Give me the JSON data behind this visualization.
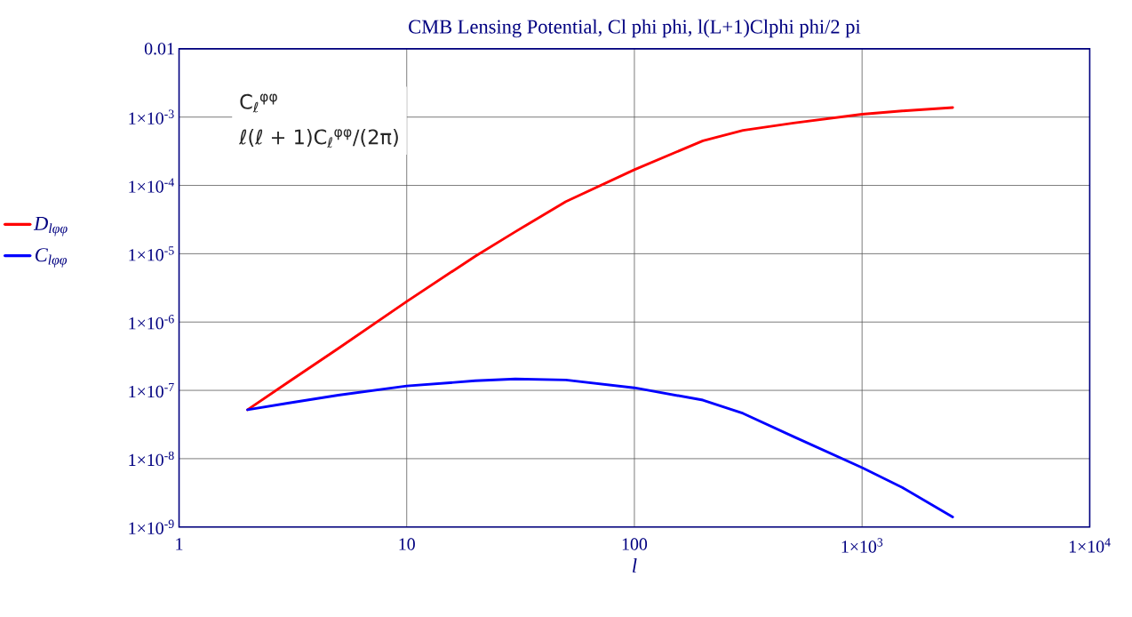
{
  "chart_data": {
    "type": "line",
    "title": "CMB Lensing Potential, Cl phi phi,  l(L+1)Clphi phi/2 pi",
    "xlabel": "l",
    "x": [
      2,
      3,
      5,
      10,
      20,
      30,
      50,
      100,
      200,
      300,
      500,
      1000,
      1500,
      2500
    ],
    "series": [
      {
        "name": "D$_{lφφ}$",
        "color": "#ff0000",
        "values": [
          5.2e-08,
          1.3e-07,
          4.1e-07,
          2e-06,
          9.2e-06,
          2.1e-05,
          5.8e-05,
          0.00017,
          0.00045,
          0.00064,
          0.00082,
          0.0011,
          0.00123,
          0.00138
        ]
      },
      {
        "name": "C$_{lφφ}$",
        "color": "#0000ff",
        "values": [
          5.2e-08,
          6.5e-08,
          8.5e-08,
          1.16e-07,
          1.38e-07,
          1.47e-07,
          1.42e-07,
          1.09e-07,
          7.2e-08,
          4.6e-08,
          2.1e-08,
          7.4e-09,
          3.8e-09,
          1.4e-09
        ]
      }
    ],
    "annotations": [
      "C$_{ℓ}$$^{φφ}$",
      "ℓ(ℓ + 1)C$_{ℓ}$$^{φφ}$/(2π)"
    ],
    "log": "xy",
    "grid": true,
    "legend": "left",
    "xlim": [
      1,
      10000
    ],
    "ylim": [
      1e-09,
      0.01
    ],
    "xticks": [
      1,
      10,
      100,
      {
        "value": 1000,
        "label": "1×10$^{3}$"
      },
      {
        "value": 10000,
        "label": "1×10$^{4}$"
      }
    ],
    "yticks": [
      {
        "value": 1e-09,
        "label": "1×10$^{-9}$"
      },
      {
        "value": 1e-08,
        "label": "1×10$^{-8}$"
      },
      {
        "value": 1e-07,
        "label": "1×10$^{-7}$"
      },
      {
        "value": 1e-06,
        "label": "1×10$^{-6}$"
      },
      {
        "value": 1e-05,
        "label": "1×10$^{-5}$"
      },
      {
        "value": 0.0001,
        "label": "1×10$^{-4}$"
      },
      {
        "value": 0.001,
        "label": "1×10$^{-3}$"
      },
      0.01
    ]
  }
}
